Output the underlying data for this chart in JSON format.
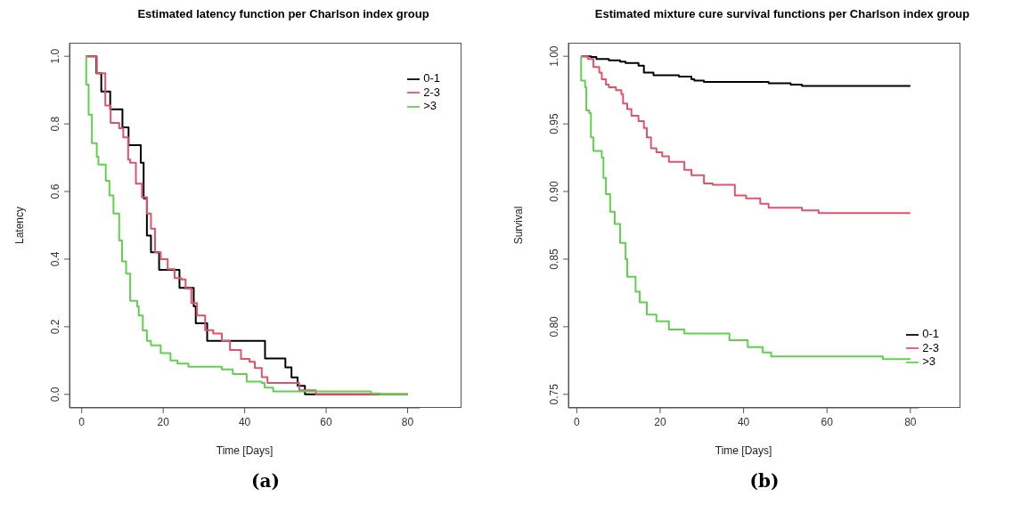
{
  "chart_data": [
    {
      "type": "step",
      "title": "Estimated latency function per Charlson index group",
      "xlabel": "Time [Days]",
      "ylabel": "Latency",
      "annotations": [
        "(a)"
      ],
      "xlim": [
        -3,
        83
      ],
      "ylim": [
        -0.04,
        1.04
      ],
      "xticks": [
        0,
        20,
        40,
        60,
        80
      ],
      "yticks": [
        {
          "value": 0,
          "label": "0.0"
        },
        {
          "value": 0.2,
          "label": "0.2"
        },
        {
          "value": 0.4,
          "label": "0.4"
        },
        {
          "value": 0.6,
          "label": "0.6"
        },
        {
          "value": 0.8,
          "label": "0.8"
        },
        {
          "value": 1,
          "label": "1.0"
        }
      ],
      "grid": false,
      "legend": "top right",
      "line_style": "solid",
      "marker": "none",
      "series": [
        {
          "name": "0-1",
          "color": "#000000",
          "x": [
            1,
            3.6,
            4.8,
            7,
            10,
            11.5,
            14.5,
            15.2,
            16,
            17,
            19,
            24,
            27.5,
            28,
            30.8,
            45,
            50,
            51.5,
            53,
            54.8,
            80
          ],
          "values": [
            1,
            0.95,
            0.896,
            0.843,
            0.79,
            0.737,
            0.685,
            0.58,
            0.47,
            0.42,
            0.368,
            0.315,
            0.26,
            0.21,
            0.158,
            0.106,
            0.08,
            0.05,
            0.025,
            0,
            0
          ]
        },
        {
          "name": "2-3",
          "color": "#df536b",
          "x": [
            1,
            3.7,
            5.8,
            7.1,
            9.2,
            10.2,
            11.4,
            11.9,
            13.3,
            14.8,
            16,
            17,
            18,
            19.4,
            21.1,
            22.8,
            24.5,
            25.5,
            26.9,
            28.3,
            30.3,
            32.3,
            34.4,
            36.4,
            39.1,
            41.2,
            42.5,
            44.2,
            45.6,
            51.7,
            53.4,
            57.5,
            80
          ],
          "values": [
            1,
            0.95,
            0.854,
            0.803,
            0.787,
            0.76,
            0.694,
            0.685,
            0.623,
            0.583,
            0.535,
            0.49,
            0.42,
            0.4,
            0.37,
            0.344,
            0.34,
            0.313,
            0.27,
            0.233,
            0.19,
            0.18,
            0.158,
            0.131,
            0.105,
            0.096,
            0.078,
            0.051,
            0.034,
            0.034,
            0.012,
            0,
            0
          ]
        },
        {
          "name": ">3",
          "color": "#61d04f",
          "x": [
            1,
            1.1,
            1.7,
            2.5,
            3.7,
            4.1,
            5.9,
            6.8,
            7.8,
            9.2,
            9.9,
            10.9,
            11.9,
            13.6,
            14,
            15,
            16,
            17,
            19.4,
            21.8,
            23.5,
            26.2,
            31.7,
            34.4,
            37.1,
            40.5,
            44.2,
            44.9,
            47,
            68.4,
            71,
            73.2,
            80
          ],
          "values": [
            1,
            0.916,
            0.827,
            0.743,
            0.703,
            0.68,
            0.632,
            0.588,
            0.535,
            0.455,
            0.393,
            0.357,
            0.277,
            0.26,
            0.233,
            0.189,
            0.158,
            0.145,
            0.122,
            0.1,
            0.091,
            0.082,
            0.082,
            0.074,
            0.06,
            0.038,
            0.034,
            0.02,
            0.009,
            0.009,
            0.003,
            0,
            0
          ]
        }
      ]
    },
    {
      "type": "step",
      "title": "Estimated mixture cure survival functions per Charlson index group",
      "xlabel": "Time [Days]",
      "ylabel": "Survival",
      "annotations": [
        "(b)"
      ],
      "xlim": [
        -2,
        82
      ],
      "ylim": [
        0.74,
        1.01
      ],
      "xticks": [
        0,
        20,
        40,
        60,
        80
      ],
      "yticks": [
        {
          "value": 0.75,
          "label": "0.75"
        },
        {
          "value": 0.8,
          "label": "0.80"
        },
        {
          "value": 0.85,
          "label": "0.85"
        },
        {
          "value": 0.9,
          "label": "0.90"
        },
        {
          "value": 0.95,
          "label": "0.95"
        },
        {
          "value": 1,
          "label": "1.00"
        }
      ],
      "grid": false,
      "legend": "bottom right",
      "line_style": "solid",
      "marker": "none",
      "series": [
        {
          "name": "0-1",
          "color": "#000000",
          "x": [
            1,
            3.4,
            4.7,
            7.7,
            10.4,
            11.7,
            14.8,
            16.1,
            18.4,
            24.5,
            27.5,
            28.2,
            30.5,
            46,
            51.3,
            54,
            80
          ],
          "values": [
            1,
            0.9995,
            0.998,
            0.997,
            0.996,
            0.995,
            0.993,
            0.988,
            0.986,
            0.985,
            0.983,
            0.982,
            0.981,
            0.98,
            0.979,
            0.978,
            0.978
          ]
        },
        {
          "name": "2-3",
          "color": "#df536b",
          "x": [
            1,
            2.7,
            4,
            5.4,
            6,
            7,
            7.7,
            9.4,
            10.7,
            11.1,
            12.1,
            13.1,
            14.8,
            16.1,
            16.8,
            17.8,
            19.1,
            20.5,
            22.1,
            25.8,
            27.5,
            30.5,
            32.6,
            37.9,
            40.6,
            44,
            46,
            54,
            58,
            80
          ],
          "values": [
            1,
            0.998,
            0.992,
            0.988,
            0.983,
            0.979,
            0.977,
            0.975,
            0.972,
            0.965,
            0.961,
            0.956,
            0.952,
            0.947,
            0.94,
            0.932,
            0.929,
            0.926,
            0.922,
            0.916,
            0.912,
            0.906,
            0.905,
            0.897,
            0.895,
            0.891,
            0.888,
            0.886,
            0.884,
            0.884
          ]
        },
        {
          "name": ">3",
          "color": "#61d04f",
          "x": [
            1,
            1.05,
            2,
            2.3,
            3,
            3.4,
            4,
            6,
            6.4,
            7,
            8,
            9.1,
            10.4,
            11.7,
            12.1,
            14.1,
            15.1,
            16.8,
            19.1,
            22.1,
            25.8,
            31.9,
            36.6,
            41,
            44.6,
            46.6,
            68,
            73.4,
            80
          ],
          "values": [
            1,
            0.982,
            0.977,
            0.96,
            0.958,
            0.94,
            0.93,
            0.925,
            0.91,
            0.898,
            0.885,
            0.876,
            0.862,
            0.85,
            0.837,
            0.826,
            0.818,
            0.809,
            0.804,
            0.798,
            0.795,
            0.795,
            0.79,
            0.785,
            0.781,
            0.778,
            0.778,
            0.776,
            0.776
          ]
        }
      ]
    }
  ]
}
